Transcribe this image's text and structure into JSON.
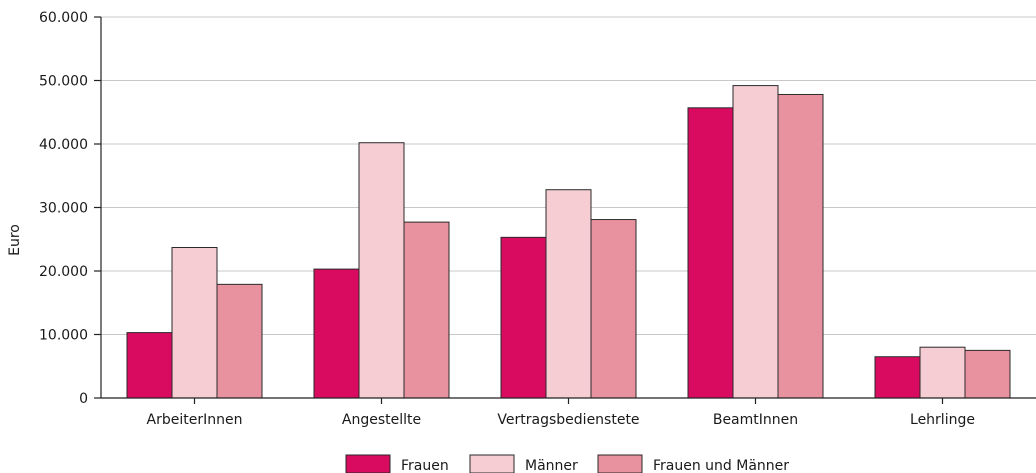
{
  "chart_data": {
    "type": "bar",
    "ylabel": "Euro",
    "ylim": [
      0,
      60000
    ],
    "yticks": [
      0,
      10000,
      20000,
      30000,
      40000,
      50000,
      60000
    ],
    "ytick_labels": [
      "0",
      "10.000",
      "20.000",
      "30.000",
      "40.000",
      "50.000",
      "60.000"
    ],
    "categories": [
      "ArbeiterInnen",
      "Angestellte",
      "Vertragsbedienstete",
      "BeamtInnen",
      "Lehrlinge"
    ],
    "series": [
      {
        "name": "Frauen",
        "color": "#d80b60",
        "values": [
          10300,
          20300,
          25300,
          45700,
          6500
        ]
      },
      {
        "name": "Männer",
        "color": "#f5cdd3",
        "values": [
          23700,
          40200,
          32800,
          49200,
          8000
        ]
      },
      {
        "name": "Frauen und Männer",
        "color": "#e8929f",
        "values": [
          17900,
          27700,
          28100,
          47800,
          7500
        ]
      }
    ],
    "grid": true,
    "legend_position": "bottom"
  }
}
